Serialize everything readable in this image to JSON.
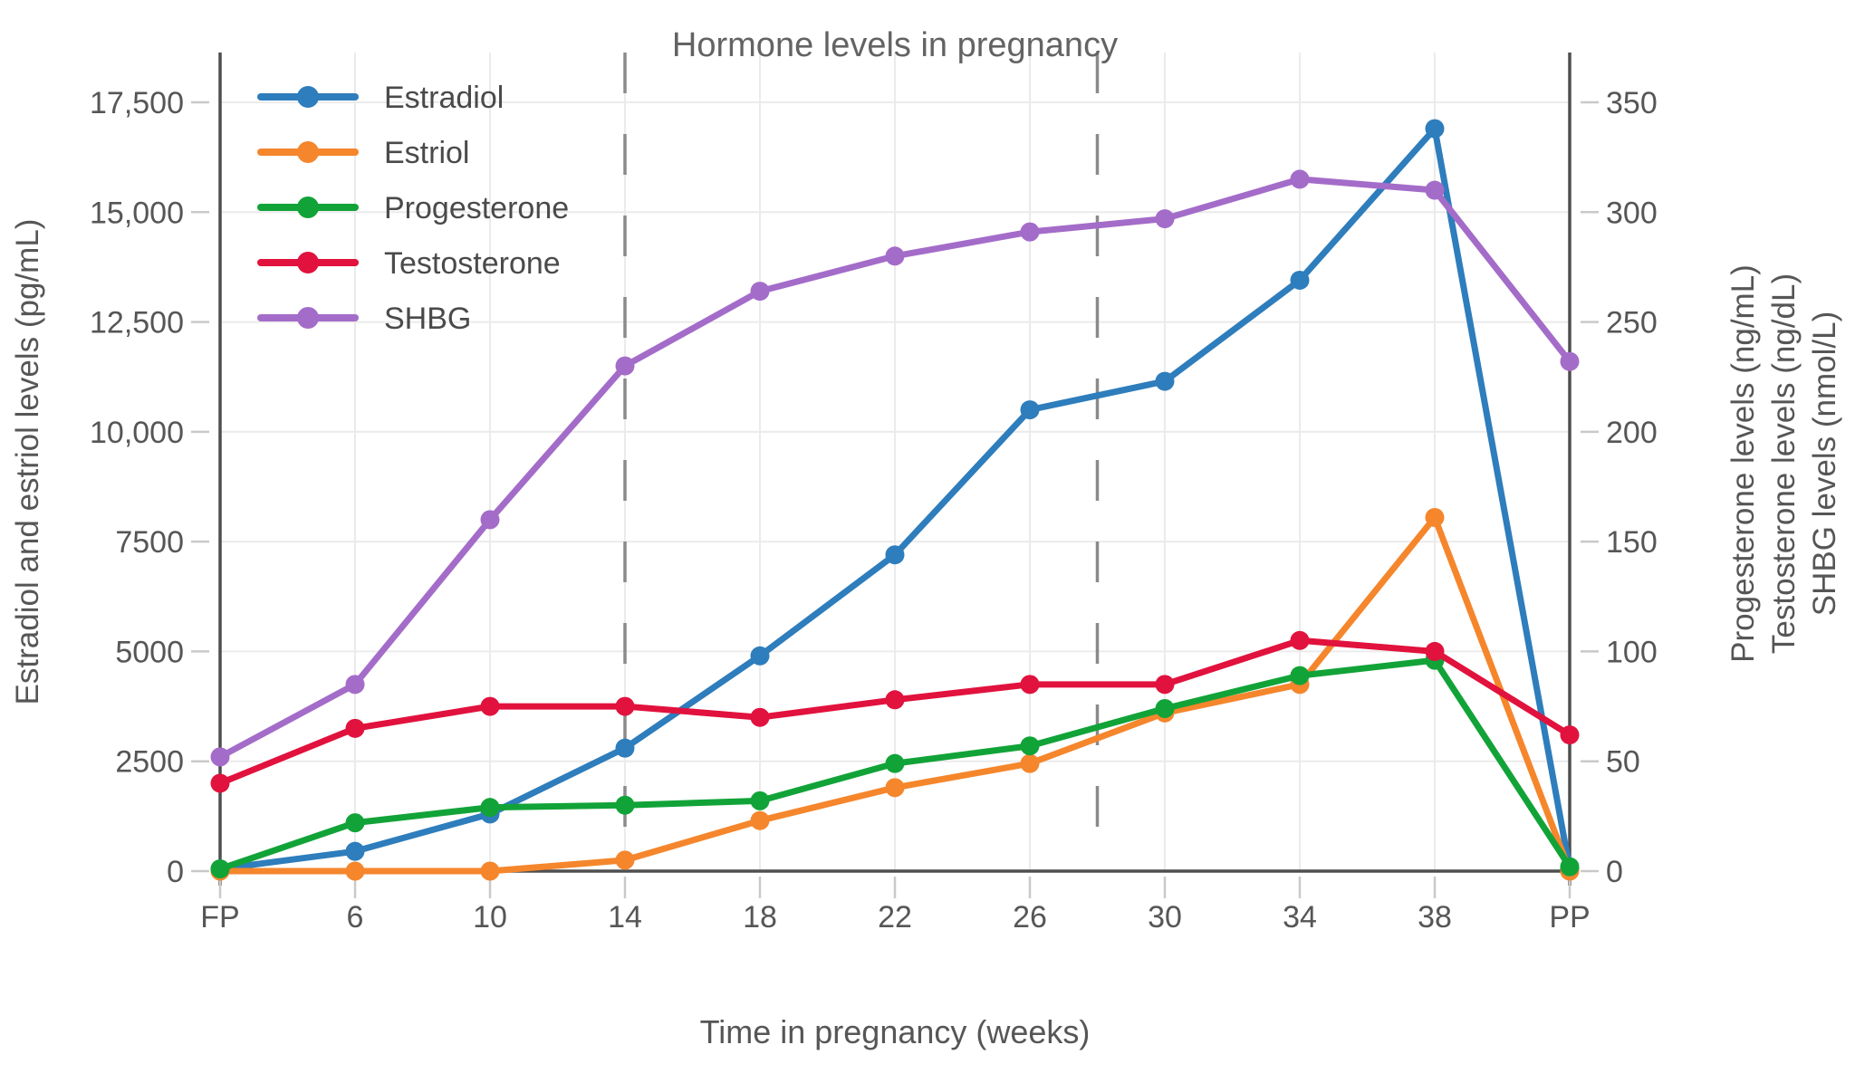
{
  "title": "Hormone levels in pregnancy",
  "x_axis": {
    "title": "Time in pregnancy (weeks)",
    "tick_labels": [
      "FP",
      "6",
      "10",
      "14",
      "18",
      "22",
      "26",
      "30",
      "34",
      "38",
      "PP"
    ]
  },
  "y_axis_left": {
    "title": "Estradiol and estriol levels (pg/mL)",
    "tick_labels": [
      "0",
      "2500",
      "5000",
      "7500",
      "10,000",
      "12,500",
      "15,000",
      "17,500"
    ],
    "tick_values": [
      0,
      2500,
      5000,
      7500,
      10000,
      12500,
      15000,
      17500
    ]
  },
  "y_axis_right": {
    "titles": [
      "Progesterone levels (ng/mL)",
      "Testosterone levels (ng/dL)",
      "SHBG levels (nmol/L)"
    ],
    "tick_labels": [
      "0",
      "50",
      "100",
      "150",
      "200",
      "250",
      "300",
      "350"
    ],
    "tick_values": [
      0,
      50,
      100,
      150,
      200,
      250,
      300,
      350
    ]
  },
  "legend": {
    "entries": [
      "Estradiol",
      "Estriol",
      "Progesterone",
      "Testosterone",
      "SHBG"
    ],
    "position": "top-left"
  },
  "colors": {
    "estradiol": "#2e7dbc",
    "estriol": "#f5862c",
    "progesterone": "#12a338",
    "testosterone": "#e1123d",
    "shbg": "#a46cc9",
    "grid": "#ebebeb",
    "axis_line": "#4f4f4f",
    "tick_mark": "#c9c9c9",
    "divider": "#8a8a8a",
    "text": "#565656"
  },
  "chart_data": {
    "type": "line",
    "title": "Hormone levels in pregnancy",
    "xlabel": "Time in pregnancy (weeks)",
    "x_categories": [
      "FP",
      "6",
      "10",
      "14",
      "18",
      "22",
      "26",
      "30",
      "34",
      "38",
      "PP"
    ],
    "y_left_label": "Estradiol and estriol levels (pg/mL)",
    "y_left_range": [
      0,
      17500
    ],
    "y_right_labels": [
      "Progesterone levels (ng/mL)",
      "Testosterone levels (ng/dL)",
      "SHBG levels (nmol/L)"
    ],
    "y_right_range": [
      0,
      350
    ],
    "grid": true,
    "legend_position": "top-left",
    "trimester_divider_weeks": [
      14,
      28
    ],
    "series": [
      {
        "name": "Estradiol",
        "axis": "left",
        "unit": "pg/mL",
        "color": "#2e7dbc",
        "values": [
          50,
          450,
          1300,
          2800,
          4900,
          7200,
          10500,
          11150,
          13450,
          16900,
          50
        ]
      },
      {
        "name": "Estriol",
        "axis": "left",
        "unit": "pg/mL",
        "color": "#f5862c",
        "values": [
          0,
          0,
          0,
          250,
          1150,
          1900,
          2450,
          3600,
          4250,
          8050,
          0
        ]
      },
      {
        "name": "Progesterone",
        "axis": "right",
        "unit": "ng/mL",
        "color": "#12a338",
        "values": [
          1,
          22,
          29,
          30,
          32,
          49,
          57,
          74,
          89,
          96,
          2
        ]
      },
      {
        "name": "Testosterone",
        "axis": "right",
        "unit": "ng/dL",
        "color": "#e1123d",
        "values": [
          40,
          65,
          75,
          75,
          70,
          78,
          85,
          85,
          105,
          100,
          62
        ]
      },
      {
        "name": "SHBG",
        "axis": "right",
        "unit": "nmol/L",
        "color": "#a46cc9",
        "values": [
          52,
          85,
          160,
          230,
          264,
          280,
          291,
          297,
          315,
          310,
          232
        ]
      }
    ]
  }
}
